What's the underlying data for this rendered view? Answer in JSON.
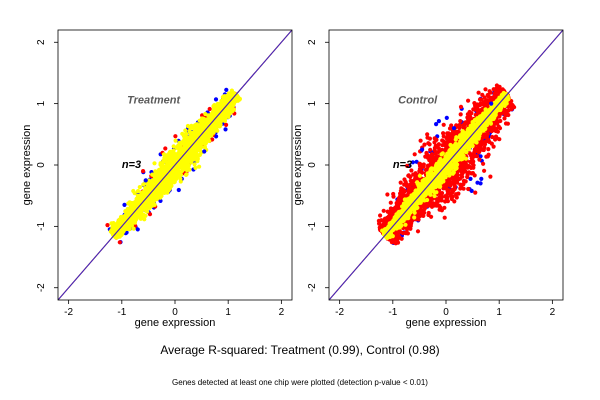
{
  "figure": {
    "summary": "Average R-squared: Treatment (0.99), Control (0.98)",
    "footnote": "Genes detected at least one chip were plotted (detection p-value < 0.01)"
  },
  "chart_data": [
    {
      "type": "scatter",
      "title": "",
      "panel_label": "Treatment",
      "annotation": "n=3",
      "xlabel": "gene expression",
      "ylabel": "gene expression",
      "xlim": [
        -2.2,
        2.2
      ],
      "ylim": [
        -2.2,
        2.2
      ],
      "xticks": [
        "-2",
        "-1",
        "0",
        "1",
        "2"
      ],
      "yticks": [
        "-2",
        "-1",
        "0",
        "1",
        "2"
      ],
      "reference_lines": [
        {
          "name": "identity",
          "slope": 1,
          "intercept": 0,
          "color": "#e6a000"
        },
        {
          "name": "fit",
          "slope": 1.0,
          "intercept": 0.0,
          "color": "#d00000"
        },
        {
          "name": "fit-2",
          "slope": 1.0,
          "intercept": 0.0,
          "color": "#3a2bd0"
        }
      ],
      "series": [
        {
          "color": "#0000ff",
          "x_range": [
            -1.15,
            1.15
          ],
          "spread": 0.12,
          "values": 160
        },
        {
          "color": "#ff0000",
          "x_range": [
            -1.15,
            1.15
          ],
          "spread": 0.09,
          "values": 220
        },
        {
          "color": "#ffff00",
          "x_range": [
            -1.15,
            1.15
          ],
          "spread": 0.075,
          "values": 2600
        }
      ],
      "outliers": [
        {
          "color": "#0000ff",
          "x": -0.95,
          "y": -0.65
        },
        {
          "color": "#0000ff",
          "x": -0.7,
          "y": -1.05
        },
        {
          "color": "#0000ff",
          "x": 0.55,
          "y": 0.22
        },
        {
          "color": "#0000ff",
          "x": 0.95,
          "y": 0.58
        },
        {
          "color": "#0000ff",
          "x": -0.55,
          "y": -0.25
        },
        {
          "color": "#ff0000",
          "x": -0.6,
          "y": -0.1
        }
      ]
    },
    {
      "type": "scatter",
      "title": "",
      "panel_label": "Control",
      "annotation": "n=3",
      "xlabel": "gene expression",
      "ylabel": "gene expression",
      "xlim": [
        -2.2,
        2.2
      ],
      "ylim": [
        -2.2,
        2.2
      ],
      "xticks": [
        "-2",
        "-1",
        "0",
        "1",
        "2"
      ],
      "yticks": [
        "-2",
        "-1",
        "0",
        "1",
        "2"
      ],
      "reference_lines": [
        {
          "name": "identity",
          "slope": 1,
          "intercept": 0,
          "color": "#e6a000"
        },
        {
          "name": "fit",
          "slope": 1.0,
          "intercept": 0.0,
          "color": "#d00000"
        },
        {
          "name": "fit-2",
          "slope": 1.0,
          "intercept": 0.0,
          "color": "#3a2bd0"
        }
      ],
      "series": [
        {
          "color": "#0000ff",
          "x_range": [
            -1.15,
            1.15
          ],
          "spread": 0.2,
          "values": 140
        },
        {
          "color": "#ff0000",
          "x_range": [
            -1.15,
            1.15
          ],
          "spread": 0.16,
          "values": 2200
        },
        {
          "color": "#ffff00",
          "x_range": [
            -1.15,
            1.15
          ],
          "spread": 0.055,
          "values": 1800
        }
      ],
      "outliers": [
        {
          "color": "#ff0000",
          "x": 0.55,
          "y": -0.45
        },
        {
          "color": "#0000ff",
          "x": 0.15,
          "y": 0.6
        },
        {
          "color": "#0000ff",
          "x": 0.65,
          "y": -0.3
        },
        {
          "color": "#0000ff",
          "x": -0.45,
          "y": 0.25
        },
        {
          "color": "#0000ff",
          "x": 0.85,
          "y": 1.0
        }
      ]
    }
  ]
}
